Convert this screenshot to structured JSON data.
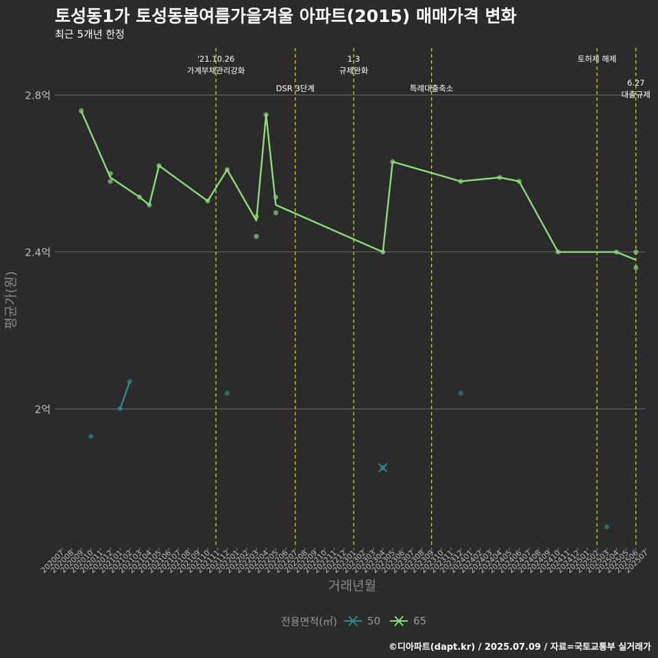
{
  "header": {
    "title": "토성동1가 토성동봄여름가을겨울 아파트(2015) 매매가격 변화",
    "subtitle": "최근 5개년 한정"
  },
  "caption": "©디아파트(dapt.kr) / 2025.07.09 / 자료=국토교통부 실거래가",
  "legend": {
    "title": "전용면적(㎡)"
  },
  "colors": {
    "background": "#2b2b2b",
    "gridline": "#6a6a6a",
    "event_line": "#e6e600",
    "axis_text": "#bfbfbf",
    "axis_title": "#8a8a8a"
  },
  "chart_data": {
    "type": "line",
    "xlabel": "거래년월",
    "ylabel": "평균가(원)",
    "ylim": [
      1.65,
      2.92
    ],
    "y_ticks": [
      {
        "value": 2.0,
        "label": "2억"
      },
      {
        "value": 2.4,
        "label": "2.4억"
      },
      {
        "value": 2.8,
        "label": "2.8억"
      }
    ],
    "categories": [
      "202007",
      "202008",
      "202009",
      "202010",
      "202011",
      "202012",
      "202101",
      "202102",
      "202103",
      "202104",
      "202105",
      "202106",
      "202107",
      "202108",
      "202109",
      "202110",
      "202111",
      "202112",
      "202201",
      "202202",
      "202203",
      "202204",
      "202205",
      "202206",
      "202207",
      "202208",
      "202209",
      "202210",
      "202211",
      "202212",
      "202301",
      "202302",
      "202303",
      "202304",
      "202305",
      "202306",
      "202307",
      "202308",
      "202309",
      "202310",
      "202311",
      "202312",
      "202401",
      "202402",
      "202403",
      "202404",
      "202405",
      "202406",
      "202407",
      "202408",
      "202409",
      "202410",
      "202411",
      "202412",
      "202501",
      "202502",
      "202503",
      "202504",
      "202505",
      "202506",
      "202507"
    ],
    "series": [
      {
        "name": "50",
        "color": "#2a8c8c",
        "line": [
          [
            "202101",
            2.0
          ],
          [
            "202102",
            2.07
          ]
        ],
        "points": [
          [
            "202010",
            1.93
          ],
          [
            "202101",
            2.0
          ],
          [
            "202102",
            2.07
          ],
          [
            "202112",
            2.04
          ],
          [
            "202304",
            1.85
          ],
          [
            "202312",
            2.04
          ],
          [
            "202503",
            1.7
          ]
        ],
        "cross_markers": [
          "202304"
        ]
      },
      {
        "name": "65",
        "color": "#8be07a",
        "line": [
          [
            "202009",
            2.76
          ],
          [
            "202012",
            2.59
          ],
          [
            "202103",
            2.54
          ],
          [
            "202104",
            2.52
          ],
          [
            "202105",
            2.62
          ],
          [
            "202110",
            2.53
          ],
          [
            "202112",
            2.61
          ],
          [
            "202203",
            2.48
          ],
          [
            "202204",
            2.75
          ],
          [
            "202205",
            2.52
          ],
          [
            "202304",
            2.4
          ],
          [
            "202305",
            2.63
          ],
          [
            "202312",
            2.58
          ],
          [
            "202404",
            2.59
          ],
          [
            "202406",
            2.58
          ],
          [
            "202410",
            2.4
          ],
          [
            "202504",
            2.4
          ],
          [
            "202506",
            2.38
          ]
        ],
        "points": [
          [
            "202009",
            2.76
          ],
          [
            "202012",
            2.6
          ],
          [
            "202012",
            2.58
          ],
          [
            "202103",
            2.54
          ],
          [
            "202104",
            2.52
          ],
          [
            "202105",
            2.62
          ],
          [
            "202110",
            2.53
          ],
          [
            "202112",
            2.61
          ],
          [
            "202203",
            2.49
          ],
          [
            "202203",
            2.44
          ],
          [
            "202204",
            2.75
          ],
          [
            "202205",
            2.54
          ],
          [
            "202205",
            2.5
          ],
          [
            "202304",
            2.4
          ],
          [
            "202305",
            2.63
          ],
          [
            "202312",
            2.58
          ],
          [
            "202404",
            2.59
          ],
          [
            "202406",
            2.58
          ],
          [
            "202410",
            2.4
          ],
          [
            "202504",
            2.4
          ],
          [
            "202506",
            2.4
          ],
          [
            "202506",
            2.36
          ]
        ]
      }
    ],
    "events": [
      {
        "x": 202110.85,
        "lines": [
          "'21.10.26",
          "가계부채관리강화"
        ],
        "row": 0
      },
      {
        "x": 202207,
        "lines": [
          "DSR 3단계"
        ],
        "row": 1
      },
      {
        "x": 202301,
        "lines": [
          "1.3",
          "규제완화"
        ],
        "row": 0
      },
      {
        "x": 202309,
        "lines": [
          "특례대출축소"
        ],
        "row": 1
      },
      {
        "x": 202502,
        "lines": [
          "토허제 해제"
        ],
        "row": 0
      },
      {
        "x": 202506,
        "lines": [
          "6.27",
          "대출규제"
        ],
        "row": 2
      }
    ]
  }
}
